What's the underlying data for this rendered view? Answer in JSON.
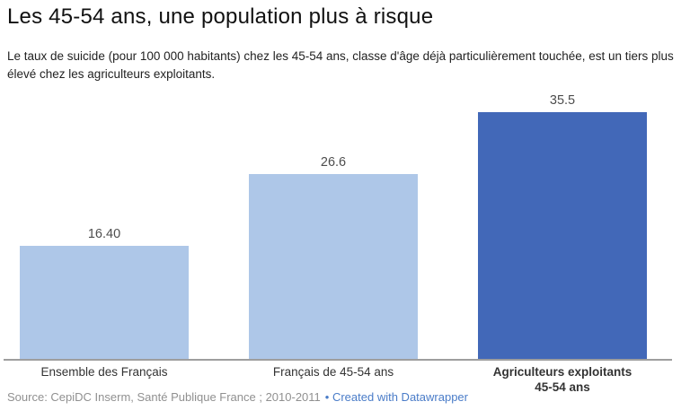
{
  "header": {
    "title": "Les 45-54 ans, une population plus à risque",
    "description": "Le taux de suicide (pour 100 000 habitants) chez les 45-54 ans, classe d'âge déjà particulièrement touchée, est un tiers plus élevé chez les agriculteurs exploitants."
  },
  "chart_data": {
    "type": "bar",
    "categories": [
      "Ensemble des Français",
      "Français de 45-54 ans",
      "Agriculteurs exploitants 45-54 ans"
    ],
    "values": [
      16.4,
      26.6,
      35.5
    ],
    "value_labels": [
      "16.40",
      "26.6",
      "35.5"
    ],
    "title": "Les 45-54 ans, une population plus à risque",
    "xlabel": "",
    "ylabel": "",
    "ylim": [
      0,
      38
    ],
    "grid": false,
    "legend": false,
    "value_label_position": "above-bar",
    "highlight_index": 2,
    "bar_colors": [
      "#aec7e8",
      "#aec7e8",
      "#4268b8"
    ]
  },
  "footer": {
    "source_text": "Source: CepiDC Inserm, Santé Publique France ; 2010-2011",
    "link_text": "• Created with Datawrapper"
  },
  "colors": {
    "bar_light_blue": "#aec7e8",
    "bar_dark_blue": "#4268b8",
    "axis_line": "#9e9e9e",
    "link_blue": "#4a7cc8",
    "source_gray": "#909090"
  }
}
